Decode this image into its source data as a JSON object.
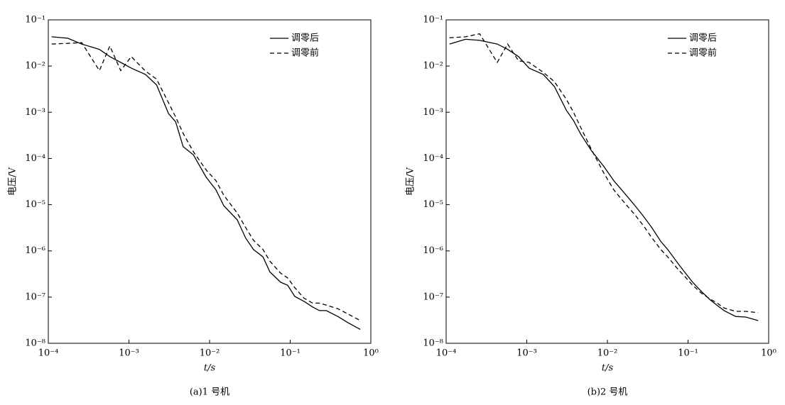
{
  "chart_data": [
    {
      "type": "line",
      "caption": "(a)1 号机",
      "x_label": "t/s",
      "y_label": "电压/V",
      "xscale": "log",
      "yscale": "log",
      "legend": "upper right",
      "grid": false,
      "xlim": [
        0.0001,
        1
      ],
      "ylim": [
        1e-08,
        0.1
      ],
      "xticks": [
        {
          "value": 0.0001,
          "label": "10⁻⁴"
        },
        {
          "value": 0.001,
          "label": "10⁻³"
        },
        {
          "value": 0.01,
          "label": "10⁻²"
        },
        {
          "value": 0.1,
          "label": "10⁻¹"
        },
        {
          "value": 1,
          "label": "10⁰"
        }
      ],
      "yticks": [
        {
          "value": 1e-08,
          "label": "10⁻⁸"
        },
        {
          "value": 1e-07,
          "label": "10⁻⁷"
        },
        {
          "value": 1e-06,
          "label": "10⁻⁶"
        },
        {
          "value": 1e-05,
          "label": "10⁻⁵"
        },
        {
          "value": 0.0001,
          "label": "10⁻⁴"
        },
        {
          "value": 0.001,
          "label": "10⁻³"
        },
        {
          "value": 0.01,
          "label": "10⁻²"
        },
        {
          "value": 0.1,
          "label": "10⁻¹"
        }
      ],
      "x": [
        0.00011,
        0.000174,
        0.00026,
        0.00043,
        0.00058,
        0.00079,
        0.00107,
        0.0016,
        0.0022,
        0.0031,
        0.0038,
        0.0047,
        0.0063,
        0.0091,
        0.012,
        0.015,
        0.022,
        0.028,
        0.035,
        0.046,
        0.056,
        0.076,
        0.093,
        0.114,
        0.148,
        0.19,
        0.23,
        0.28,
        0.39,
        0.52,
        0.74
      ],
      "series": [
        {
          "name": "调零后",
          "color": "#000000",
          "line_style": "solid",
          "values": [
            0.043,
            0.04,
            0.03,
            0.023,
            0.016,
            0.012,
            0.009,
            0.0066,
            0.0039,
            0.00093,
            0.00062,
            0.00018,
            0.00012,
            3.9e-05,
            2.1e-05,
            9.5e-06,
            4.7e-06,
            1.9e-06,
            1.07e-06,
            7.4e-07,
            3.5e-07,
            2.1e-07,
            1.8e-07,
            1.03e-07,
            8.1e-08,
            6.1e-08,
            5.1e-08,
            5.1e-08,
            3.8e-08,
            2.8e-08,
            2e-08
          ]
        },
        {
          "name": "调零前",
          "color": "#000000",
          "line_style": "dashed",
          "values": [
            0.03,
            0.031,
            0.032,
            0.008,
            0.027,
            0.008,
            0.016,
            0.0078,
            0.0052,
            0.0016,
            0.00079,
            0.00035,
            0.00014,
            5.6e-05,
            3.3e-05,
            1.6e-05,
            6.6e-06,
            3.2e-06,
            1.7e-06,
            1.07e-06,
            6e-07,
            3.3e-07,
            2.6e-07,
            1.6e-07,
            9.5e-08,
            7.4e-08,
            7.4e-08,
            6.7e-08,
            5.6e-08,
            4.3e-08,
            3.1e-08
          ]
        }
      ]
    },
    {
      "type": "line",
      "caption": "(b)2 号机",
      "x_label": "t/s",
      "y_label": "电压/V",
      "xscale": "log",
      "yscale": "log",
      "legend": "upper right",
      "grid": false,
      "xlim": [
        0.0001,
        1
      ],
      "ylim": [
        1e-08,
        0.1
      ],
      "xticks": [
        {
          "value": 0.0001,
          "label": "10⁻⁴"
        },
        {
          "value": 0.001,
          "label": "10⁻³"
        },
        {
          "value": 0.01,
          "label": "10⁻²"
        },
        {
          "value": 0.1,
          "label": "10⁻¹"
        },
        {
          "value": 1,
          "label": "10⁰"
        }
      ],
      "yticks": [
        {
          "value": 1e-08,
          "label": "10⁻⁸"
        },
        {
          "value": 1e-07,
          "label": "10⁻⁷"
        },
        {
          "value": 1e-06,
          "label": "10⁻⁶"
        },
        {
          "value": 1e-05,
          "label": "10⁻⁵"
        },
        {
          "value": 0.0001,
          "label": "10⁻⁴"
        },
        {
          "value": 0.001,
          "label": "10⁻³"
        },
        {
          "value": 0.01,
          "label": "10⁻²"
        },
        {
          "value": 0.1,
          "label": "10⁻¹"
        }
      ],
      "x": [
        0.00011,
        0.000174,
        0.00026,
        0.00043,
        0.00058,
        0.00079,
        0.00107,
        0.0016,
        0.0022,
        0.0031,
        0.0038,
        0.0047,
        0.0063,
        0.0091,
        0.012,
        0.015,
        0.022,
        0.028,
        0.035,
        0.046,
        0.056,
        0.076,
        0.093,
        0.114,
        0.148,
        0.19,
        0.23,
        0.28,
        0.39,
        0.52,
        0.74
      ],
      "series": [
        {
          "name": "调零后",
          "color": "#000000",
          "line_style": "solid",
          "values": [
            0.03,
            0.038,
            0.036,
            0.03,
            0.023,
            0.016,
            0.009,
            0.0066,
            0.0036,
            0.0011,
            0.00066,
            0.00033,
            0.00015,
            6.6e-05,
            3.3e-05,
            2.1e-05,
            9.5e-06,
            5.6e-06,
            3.3e-06,
            1.6e-06,
            1.07e-06,
            5.2e-07,
            3.3e-07,
            2.1e-07,
            1.3e-07,
            8.6e-08,
            6.6e-08,
            5.1e-08,
            3.8e-08,
            3.7e-08,
            3.1e-08
          ]
        },
        {
          "name": "调零前",
          "color": "#000000",
          "line_style": "dashed",
          "values": [
            0.041,
            0.043,
            0.05,
            0.012,
            0.03,
            0.013,
            0.012,
            0.0073,
            0.0046,
            0.0019,
            0.001,
            0.00046,
            0.00016,
            4.7e-05,
            2.1e-05,
            1.3e-05,
            6e-06,
            3.5e-06,
            2e-06,
            1.07e-06,
            7.4e-07,
            3.9e-07,
            2.7e-07,
            1.8e-07,
            1.2e-07,
            9e-08,
            7.4e-08,
            5.8e-08,
            4.9e-08,
            4.9e-08,
            4.6e-08
          ]
        }
      ]
    }
  ]
}
